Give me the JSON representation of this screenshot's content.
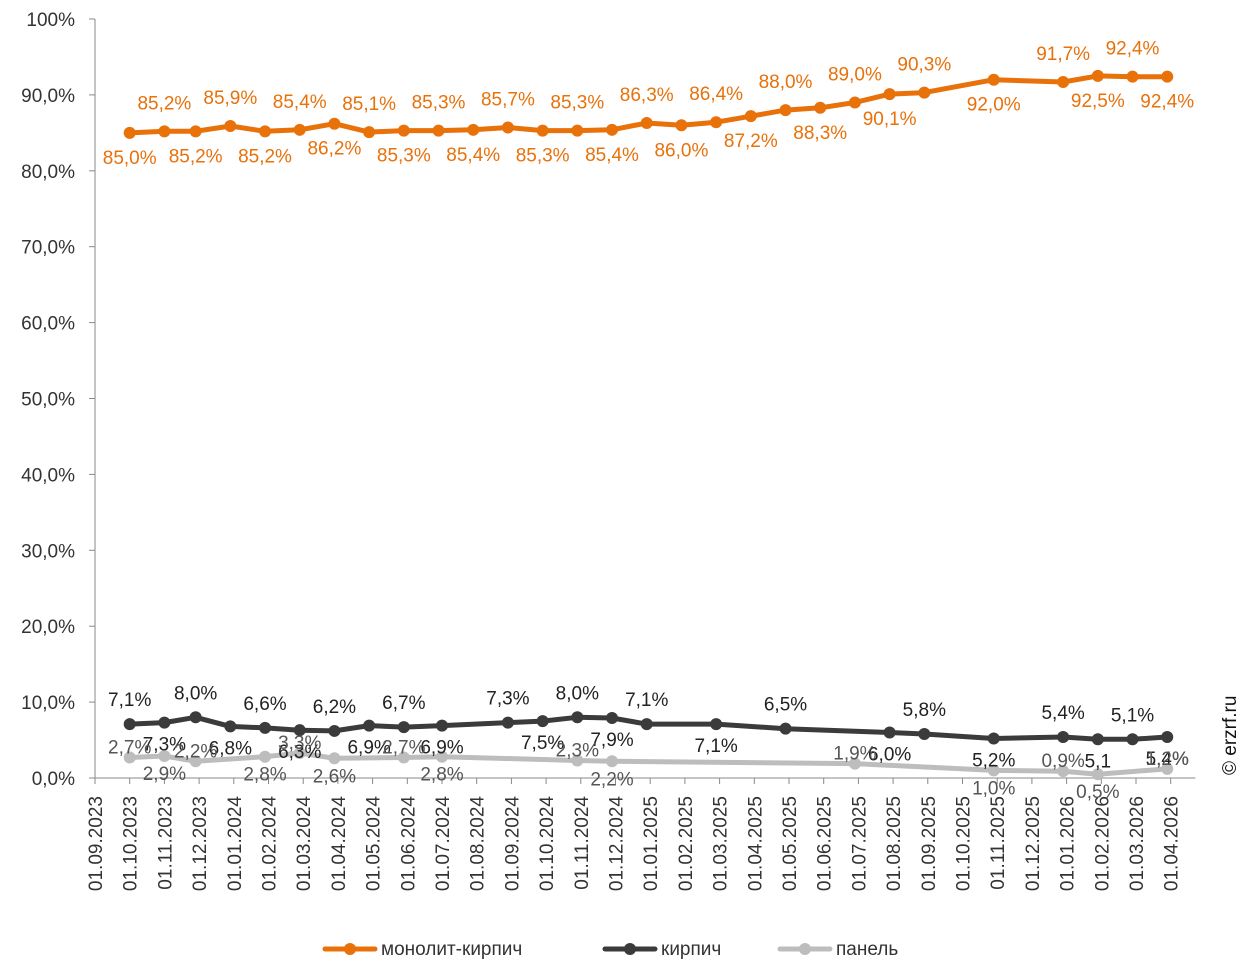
{
  "colors": {
    "monolith": "#e8710a",
    "brick": "#3b3b3b",
    "panel": "#bdbdbd",
    "axis": "#888888"
  },
  "watermark": "© erzrf.ru",
  "chart_data": {
    "type": "line",
    "grid": false,
    "ylim": [
      0,
      100
    ],
    "y_ticks": [
      "0,0%",
      "10,0%",
      "20,0%",
      "30,0%",
      "40,0%",
      "50,0%",
      "60,0%",
      "70,0%",
      "80,0%",
      "90,0%",
      "100%"
    ],
    "legend_position": "bottom",
    "categories": [
      "01.09.2023",
      "01.10.2023",
      "01.11.2023",
      "01.12.2023",
      "01.01.2024",
      "01.02.2024",
      "01.03.2024",
      "01.04.2024",
      "01.05.2024",
      "01.06.2024",
      "01.07.2024",
      "01.08.2024",
      "01.09.2024",
      "01.10.2024",
      "01.11.2024",
      "01.12.2024",
      "01.01.2025",
      "01.02.2025",
      "01.03.2025",
      "01.04.2025",
      "01.05.2025",
      "01.06.2025",
      "01.07.2025",
      "01.08.2025",
      "01.09.2025",
      "01.10.2025",
      "01.11.2025",
      "01.12.2025",
      "01.01.2026",
      "01.02.2026",
      "01.03.2026",
      "01.04.2026"
    ],
    "series": [
      {
        "name": "монолит-кирпич",
        "points": [
          {
            "x": 1.0,
            "y": 85.0,
            "label": "85,0%"
          },
          {
            "x": 2.0,
            "y": 85.2,
            "label": "85,2%"
          },
          {
            "x": 2.9,
            "y": 85.2,
            "label": "85,2%"
          },
          {
            "x": 3.9,
            "y": 85.9,
            "label": "85,9%"
          },
          {
            "x": 4.9,
            "y": 85.2,
            "label": "85,2%"
          },
          {
            "x": 5.9,
            "y": 85.4,
            "label": "85,4%"
          },
          {
            "x": 6.9,
            "y": 86.2,
            "label": "86,2%"
          },
          {
            "x": 7.9,
            "y": 85.1,
            "label": "85,1%"
          },
          {
            "x": 8.9,
            "y": 85.3,
            "label": "85,3%"
          },
          {
            "x": 9.9,
            "y": 85.3,
            "label": "85,3%"
          },
          {
            "x": 10.9,
            "y": 85.4,
            "label": "85,4%"
          },
          {
            "x": 11.9,
            "y": 85.7,
            "label": "85,7%"
          },
          {
            "x": 12.9,
            "y": 85.3,
            "label": "85,3%"
          },
          {
            "x": 13.9,
            "y": 85.3,
            "label": "85,3%"
          },
          {
            "x": 14.9,
            "y": 85.4,
            "label": "85,4%"
          },
          {
            "x": 15.9,
            "y": 86.3,
            "label": "86,3%"
          },
          {
            "x": 16.9,
            "y": 86.0,
            "label": "86,0%"
          },
          {
            "x": 17.9,
            "y": 86.4,
            "label": "86,4%"
          },
          {
            "x": 18.9,
            "y": 87.2,
            "label": "87,2%"
          },
          {
            "x": 19.9,
            "y": 88.0,
            "label": "88,0%"
          },
          {
            "x": 20.9,
            "y": 88.3,
            "label": "88,3%"
          },
          {
            "x": 21.9,
            "y": 89.0,
            "label": "89,0%"
          },
          {
            "x": 22.9,
            "y": 90.1,
            "label": "90,1%"
          },
          {
            "x": 23.9,
            "y": 90.3,
            "label": "90,3%"
          },
          {
            "x": 25.9,
            "y": 92.0,
            "label": "92,0%"
          },
          {
            "x": 27.9,
            "y": 91.7,
            "label": "91,7%"
          },
          {
            "x": 28.9,
            "y": 92.5,
            "label": "92,5%"
          },
          {
            "x": 29.9,
            "y": 92.4,
            "label": "92,4%"
          },
          {
            "x": 30.9,
            "y": 92.4,
            "label": "92,4%"
          }
        ]
      },
      {
        "name": "кирпич",
        "points": [
          {
            "x": 1.0,
            "y": 7.1,
            "label": "7,1%"
          },
          {
            "x": 2.0,
            "y": 7.3,
            "label": "7,3%"
          },
          {
            "x": 2.9,
            "y": 8.0,
            "label": "8,0%"
          },
          {
            "x": 3.9,
            "y": 6.8,
            "label": "6,8%"
          },
          {
            "x": 4.9,
            "y": 6.6,
            "label": "6,6%"
          },
          {
            "x": 5.9,
            "y": 6.3,
            "label": "6,3%"
          },
          {
            "x": 6.9,
            "y": 6.2,
            "label": "6,2%"
          },
          {
            "x": 7.9,
            "y": 6.9,
            "label": "6,9%"
          },
          {
            "x": 8.9,
            "y": 6.7,
            "label": "6,7%"
          },
          {
            "x": 10.0,
            "y": 6.9,
            "label": "6,9%"
          },
          {
            "x": 11.9,
            "y": 7.3,
            "label": "7,3%"
          },
          {
            "x": 12.9,
            "y": 7.5,
            "label": "7,5%"
          },
          {
            "x": 13.9,
            "y": 8.0,
            "label": "8,0%"
          },
          {
            "x": 14.9,
            "y": 7.9,
            "label": "7,9%"
          },
          {
            "x": 15.9,
            "y": 7.1,
            "label": "7,1%"
          },
          {
            "x": 17.9,
            "y": 7.1,
            "label": "7,1%"
          },
          {
            "x": 19.9,
            "y": 6.5,
            "label": "6,5%"
          },
          {
            "x": 22.9,
            "y": 6.0,
            "label": "6,0%"
          },
          {
            "x": 23.9,
            "y": 5.8,
            "label": "5,8%"
          },
          {
            "x": 25.9,
            "y": 5.2,
            "label": "5,2%"
          },
          {
            "x": 27.9,
            "y": 5.4,
            "label": "5,4%"
          },
          {
            "x": 28.9,
            "y": 5.1,
            "label": "5,1"
          },
          {
            "x": 29.9,
            "y": 5.1,
            "label": "5,1%"
          },
          {
            "x": 30.9,
            "y": 5.4,
            "label": "5,4%"
          }
        ]
      },
      {
        "name": "панель",
        "points": [
          {
            "x": 1.0,
            "y": 2.7,
            "label": "2,7%"
          },
          {
            "x": 2.0,
            "y": 2.9,
            "label": "2,9%"
          },
          {
            "x": 2.9,
            "y": 2.2,
            "label": "2,2%"
          },
          {
            "x": 4.9,
            "y": 2.8,
            "label": "2,8%"
          },
          {
            "x": 5.9,
            "y": 3.3,
            "label": "3,3%"
          },
          {
            "x": 6.9,
            "y": 2.6,
            "label": "2,6%"
          },
          {
            "x": 8.9,
            "y": 2.7,
            "label": "2,7%"
          },
          {
            "x": 10.0,
            "y": 2.8,
            "label": "2,8%"
          },
          {
            "x": 13.9,
            "y": 2.3,
            "label": "2,3%"
          },
          {
            "x": 14.9,
            "y": 2.2,
            "label": "2,2%"
          },
          {
            "x": 21.9,
            "y": 1.9,
            "label": "1,9%"
          },
          {
            "x": 25.9,
            "y": 1.0,
            "label": "1,0%"
          },
          {
            "x": 27.9,
            "y": 0.9,
            "label": "0,9%"
          },
          {
            "x": 28.9,
            "y": 0.5,
            "label": "0,5%"
          },
          {
            "x": 30.9,
            "y": 1.2,
            "label": "1,2%"
          }
        ]
      }
    ]
  }
}
